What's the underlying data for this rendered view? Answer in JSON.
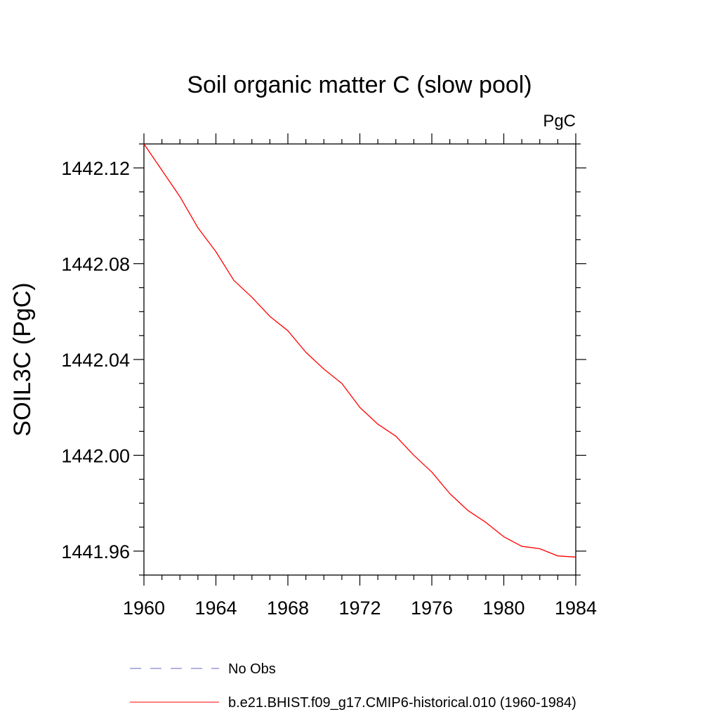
{
  "chart_data": {
    "type": "line",
    "title": "Soil organic matter C (slow pool)",
    "units": "PgC",
    "ylabel": "SOIL3C  (PgC)",
    "xlabel": "",
    "xlim": [
      1960,
      1984
    ],
    "ylim": [
      1441.95,
      1442.13
    ],
    "x_ticks": [
      1960,
      1964,
      1968,
      1972,
      1976,
      1980,
      1984
    ],
    "x_tick_labels": [
      "1960",
      "1964",
      "1968",
      "1972",
      "1976",
      "1980",
      "1984"
    ],
    "x_minor_step": 1,
    "y_ticks": [
      1441.96,
      1442.0,
      1442.04,
      1442.08,
      1442.12
    ],
    "y_tick_labels": [
      "1441.96",
      "1442.00",
      "1442.04",
      "1442.08",
      "1442.12"
    ],
    "y_minor_step": 0.01,
    "grid": false,
    "legend_position": "bottom",
    "series": [
      {
        "name": "No Obs",
        "color": "#6666cc",
        "style": "dashed",
        "x": [],
        "y": []
      },
      {
        "name": "b.e21.BHIST.f09_g17.CMIP6-historical.010 (1960-1984)",
        "color": "#ff0000",
        "style": "solid",
        "x": [
          1960,
          1961,
          1962,
          1963,
          1964,
          1965,
          1966,
          1967,
          1968,
          1969,
          1970,
          1971,
          1972,
          1973,
          1974,
          1975,
          1976,
          1977,
          1978,
          1979,
          1980,
          1981,
          1982,
          1983,
          1984
        ],
        "y": [
          1442.13,
          1442.119,
          1442.108,
          1442.095,
          1442.085,
          1442.073,
          1442.066,
          1442.058,
          1442.052,
          1442.043,
          1442.036,
          1442.03,
          1442.02,
          1442.013,
          1442.008,
          1442.0,
          1441.993,
          1441.984,
          1441.977,
          1441.972,
          1441.966,
          1441.962,
          1441.961,
          1441.958,
          1441.9575
        ]
      }
    ]
  }
}
